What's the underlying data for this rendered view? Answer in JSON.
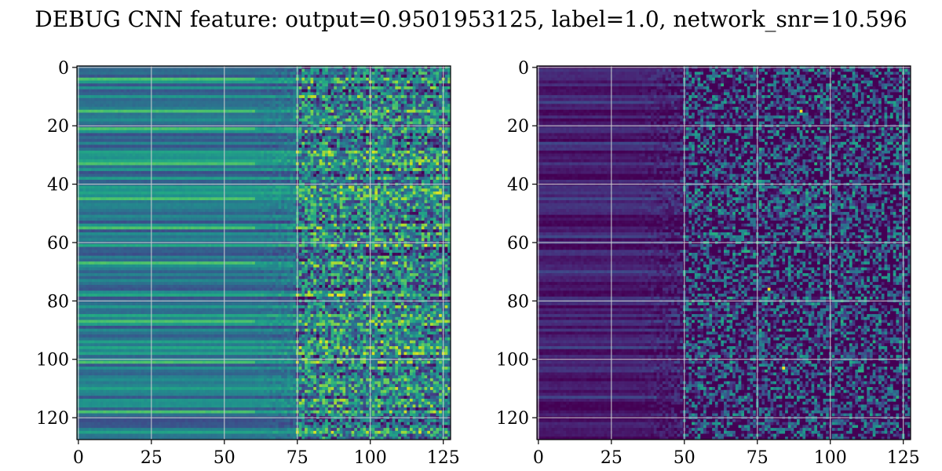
{
  "figure": {
    "title": "DEBUG CNN feature: output=0.9501953125, label=1.0, network_snr=10.596"
  },
  "chart_data": [
    {
      "type": "heatmap",
      "title": "",
      "xlabel": "",
      "ylabel": "",
      "xlim": [
        -0.5,
        127.5
      ],
      "ylim": [
        127.5,
        -0.5
      ],
      "shape": [
        128,
        128
      ],
      "colormap": "viridis",
      "grid": true,
      "xticks": [
        0,
        25,
        50,
        75,
        100,
        125
      ],
      "yticks": [
        0,
        20,
        40,
        60,
        80,
        100,
        120
      ],
      "xtick_labels": [
        "0",
        "25",
        "50",
        "75",
        "100",
        "125"
      ],
      "ytick_labels": [
        "0",
        "20",
        "40",
        "60",
        "80",
        "100",
        "120"
      ],
      "pattern": {
        "description_of_values": "row-wise horizontal stripes for columns 0-74, noisy speckle for columns 75-127",
        "bright_rows": [
          4,
          15,
          21,
          33,
          45,
          55,
          67,
          87,
          101,
          118
        ],
        "bright_row_extent_columns": [
          0,
          60
        ],
        "noise_start_column": 75,
        "base_level": 0.42,
        "stripe_amplitude": 0.18,
        "noise_amplitude": 0.35,
        "seed": 11
      }
    },
    {
      "type": "heatmap",
      "title": "",
      "xlabel": "",
      "ylabel": "",
      "xlim": [
        -0.5,
        127.5
      ],
      "ylim": [
        127.5,
        -0.5
      ],
      "shape": [
        128,
        128
      ],
      "colormap": "viridis",
      "grid": true,
      "xticks": [
        0,
        25,
        50,
        75,
        100,
        125
      ],
      "yticks": [
        0,
        20,
        40,
        60,
        80,
        100,
        120
      ],
      "xtick_labels": [
        "0",
        "25",
        "50",
        "75",
        "100",
        "125"
      ],
      "ytick_labels": [
        "0",
        "20",
        "40",
        "60",
        "80",
        "100",
        "120"
      ],
      "pattern": {
        "description_of_values": "mostly dark purple, faint stripes on the left, sparse speckle from column ~50 onward, few yellow hot pixels",
        "bright_rows": [
          12,
          26,
          45,
          58,
          70,
          96,
          113
        ],
        "bright_row_extent_columns": [
          0,
          40
        ],
        "noise_start_column": 50,
        "base_level": 0.08,
        "stripe_amplitude": 0.08,
        "noise_amplitude": 0.45,
        "hot_pixels": [
          [
            90,
            15
          ],
          [
            79,
            76
          ],
          [
            84,
            103
          ]
        ],
        "seed": 29
      }
    }
  ]
}
